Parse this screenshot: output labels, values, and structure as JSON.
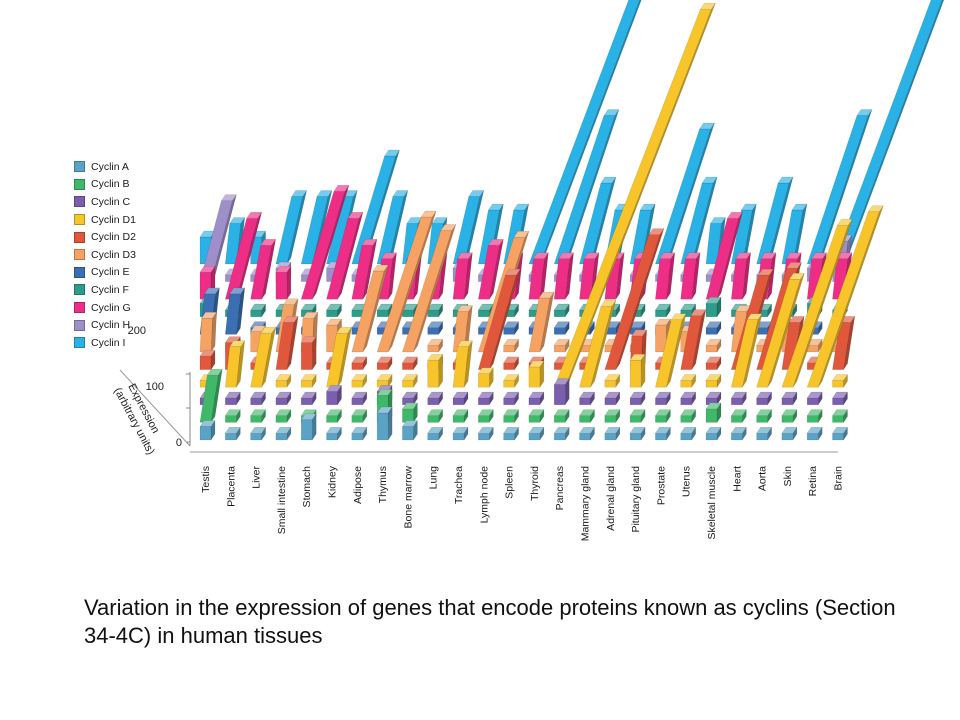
{
  "figure": {
    "caption": "Variation in the expression of genes that encode proteins known as cyclins (Section 34-4C) in human tissues"
  },
  "chart_data": {
    "type": "bar",
    "variant": "3d-bar-grid",
    "zlabel": "Expression\n(arbitrary units)",
    "zticks": [
      "0",
      "100",
      "200"
    ],
    "zlim": [
      0,
      200
    ],
    "legend_position": "left",
    "categories": [
      "Testis",
      "Placenta",
      "Liver",
      "Small intestine",
      "Stomach",
      "Kidney",
      "Adipose",
      "Thymus",
      "Bone marrow",
      "Lung",
      "Trachea",
      "Lymph node",
      "Spleen",
      "Thyroid",
      "Pancreas",
      "Mammary gland",
      "Adrenal gland",
      "Pituitary gland",
      "Prostate",
      "Uterus",
      "Skeletal muscle",
      "Heart",
      "Aorta",
      "Skin",
      "Retina",
      "Brain"
    ],
    "series": [
      {
        "name": "Cyclin A",
        "color": "#5ba3c6",
        "values": [
          10,
          5,
          5,
          5,
          15,
          5,
          5,
          20,
          10,
          5,
          5,
          5,
          5,
          5,
          5,
          5,
          5,
          5,
          5,
          5,
          5,
          5,
          5,
          5,
          5,
          5
        ]
      },
      {
        "name": "Cyclin B",
        "color": "#3fb86a",
        "values": [
          35,
          5,
          5,
          5,
          5,
          5,
          5,
          20,
          10,
          5,
          5,
          5,
          5,
          5,
          5,
          5,
          5,
          5,
          5,
          5,
          10,
          5,
          5,
          5,
          5,
          5
        ]
      },
      {
        "name": "Cyclin C",
        "color": "#7a5fb0",
        "values": [
          5,
          5,
          5,
          5,
          5,
          10,
          5,
          10,
          5,
          5,
          5,
          5,
          5,
          5,
          15,
          5,
          5,
          5,
          5,
          5,
          5,
          5,
          5,
          5,
          5,
          5
        ]
      },
      {
        "name": "Cyclin D1",
        "color": "#f7c42a",
        "values": [
          5,
          30,
          40,
          5,
          5,
          40,
          5,
          5,
          5,
          20,
          30,
          10,
          5,
          15,
          280,
          60,
          5,
          20,
          50,
          5,
          5,
          50,
          80,
          120,
          130,
          5
        ]
      },
      {
        "name": "Cyclin D2",
        "color": "#e0573c",
        "values": [
          10,
          20,
          5,
          35,
          20,
          5,
          5,
          5,
          5,
          5,
          5,
          70,
          5,
          5,
          5,
          5,
          100,
          25,
          5,
          40,
          5,
          70,
          75,
          35,
          5,
          35
        ]
      },
      {
        "name": "Cyclin D3",
        "color": "#f5a262",
        "values": [
          25,
          5,
          15,
          35,
          25,
          20,
          60,
          100,
          90,
          5,
          30,
          85,
          5,
          40,
          5,
          5,
          5,
          5,
          20,
          15,
          5,
          30,
          5,
          20,
          5,
          5
        ]
      },
      {
        "name": "Cyclin E",
        "color": "#3a6fb3",
        "values": [
          30,
          30,
          5,
          5,
          5,
          5,
          5,
          5,
          5,
          5,
          5,
          5,
          5,
          5,
          5,
          5,
          5,
          5,
          5,
          5,
          5,
          5,
          5,
          5,
          5,
          5
        ]
      },
      {
        "name": "Cyclin F",
        "color": "#2d9c8a",
        "values": [
          10,
          5,
          5,
          5,
          5,
          5,
          5,
          5,
          5,
          5,
          5,
          5,
          5,
          5,
          5,
          5,
          5,
          5,
          5,
          5,
          10,
          5,
          5,
          5,
          10,
          5
        ]
      },
      {
        "name": "Cyclin G",
        "color": "#ee2e86",
        "values": [
          20,
          60,
          40,
          20,
          80,
          60,
          40,
          30,
          30,
          30,
          30,
          40,
          30,
          30,
          30,
          30,
          30,
          30,
          30,
          30,
          60,
          30,
          30,
          30,
          30,
          30
        ]
      },
      {
        "name": "Cyclin H",
        "color": "#9e8fca",
        "values": [
          60,
          5,
          5,
          10,
          5,
          10,
          5,
          5,
          5,
          5,
          10,
          5,
          5,
          5,
          5,
          5,
          5,
          5,
          5,
          5,
          5,
          5,
          5,
          5,
          10,
          30
        ]
      },
      {
        "name": "Cyclin I",
        "color": "#2ab1e6",
        "values": [
          20,
          30,
          20,
          50,
          50,
          50,
          80,
          50,
          30,
          30,
          50,
          40,
          40,
          220,
          110,
          60,
          40,
          40,
          100,
          60,
          30,
          40,
          60,
          40,
          110,
          200
        ]
      }
    ]
  }
}
